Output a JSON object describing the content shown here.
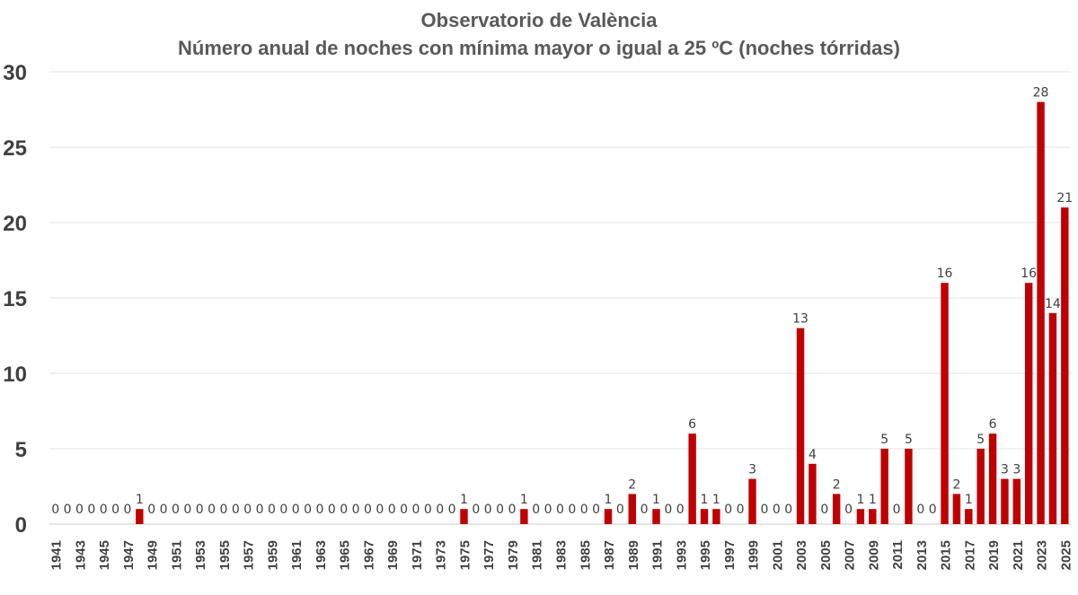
{
  "chart_data": {
    "type": "bar",
    "title": "Observatorio de València",
    "subtitle": "Número anual de noches con mínima mayor o igual a 25 ºC (noches tórridas)",
    "xlabel": "",
    "ylabel": "",
    "ylim": [
      0,
      30
    ],
    "yticks": [
      "0",
      "5",
      "10",
      "15",
      "20",
      "25",
      "30"
    ],
    "grid": true,
    "bar_color": "#C00000",
    "categories": [
      "1941",
      "1942",
      "1943",
      "1944",
      "1945",
      "1946",
      "1947",
      "1948",
      "1949",
      "1950",
      "1951",
      "1952",
      "1953",
      "1954",
      "1955",
      "1956",
      "1957",
      "1958",
      "1959",
      "1960",
      "1961",
      "1962",
      "1963",
      "1964",
      "1965",
      "1966",
      "1967",
      "1968",
      "1969",
      "1970",
      "1971",
      "1972",
      "1973",
      "1974",
      "1975",
      "1976",
      "1977",
      "1978",
      "1979",
      "1980",
      "1981",
      "1982",
      "1983",
      "1984",
      "1985",
      "1986",
      "1987",
      "1988",
      "1989",
      "1990",
      "1991",
      "1992",
      "1993",
      "1994",
      "1995",
      "1996",
      "1997",
      "1998",
      "1999",
      "2000",
      "2001",
      "2002",
      "2003",
      "2004",
      "2005",
      "2006",
      "2007",
      "2008",
      "2009",
      "2010",
      "2011",
      "2012",
      "2013",
      "2014",
      "2015",
      "2016",
      "2017",
      "2018",
      "2019",
      "2020",
      "2021",
      "2022",
      "2023",
      "2024",
      "2025"
    ],
    "values": [
      0,
      0,
      0,
      0,
      0,
      0,
      0,
      1,
      0,
      0,
      0,
      0,
      0,
      0,
      0,
      0,
      0,
      0,
      0,
      0,
      0,
      0,
      0,
      0,
      0,
      0,
      0,
      0,
      0,
      0,
      0,
      0,
      0,
      0,
      1,
      0,
      0,
      0,
      0,
      1,
      0,
      0,
      0,
      0,
      0,
      0,
      1,
      0,
      2,
      0,
      1,
      0,
      0,
      6,
      1,
      1,
      0,
      0,
      3,
      0,
      0,
      0,
      13,
      4,
      0,
      2,
      0,
      1,
      1,
      5,
      0,
      5,
      0,
      0,
      16,
      2,
      1,
      5,
      6,
      3,
      3,
      16,
      28,
      14,
      21
    ],
    "labels": [
      "0",
      "0",
      "0",
      "0",
      "0",
      "0",
      "0",
      "1",
      "0",
      "0",
      "0",
      "0",
      "0",
      "0",
      "0",
      "0",
      "0",
      "0",
      "0",
      "0",
      "0",
      "0",
      "0",
      "0",
      "0",
      "0",
      "0",
      "0",
      "0",
      "0",
      "0",
      "0",
      "0",
      "0",
      "1",
      "0",
      "0",
      "0",
      "0",
      "1",
      "0",
      "0",
      "0",
      "0",
      "0",
      "0",
      "1",
      "0",
      "2",
      "0",
      "1",
      "0",
      "0",
      "6",
      "1",
      "1",
      "0",
      "0",
      "3",
      "0",
      "0",
      "0",
      "13",
      "4",
      "0",
      "2",
      "0",
      "1",
      "1",
      "5",
      "0",
      "5",
      "0",
      "0",
      "16",
      "2",
      "1",
      "5",
      "6",
      "3",
      "3",
      "16",
      "28",
      "14",
      "21"
    ],
    "xtick_labels": [
      "1941",
      "1943",
      "1945",
      "1947",
      "1949",
      "1951",
      "1953",
      "1955",
      "1957",
      "1959",
      "1961",
      "1963",
      "1965",
      "1967",
      "1969",
      "1971",
      "1973",
      "1975",
      "1977",
      "1979",
      "1981",
      "1983",
      "1985",
      "1987",
      "1989",
      "1991",
      "1993",
      "1995",
      "1997",
      "1999",
      "2001",
      "2003",
      "2005",
      "2007",
      "2009",
      "2011",
      "2013",
      "2015",
      "2017",
      "2019",
      "2021",
      "2023",
      "2025"
    ]
  }
}
